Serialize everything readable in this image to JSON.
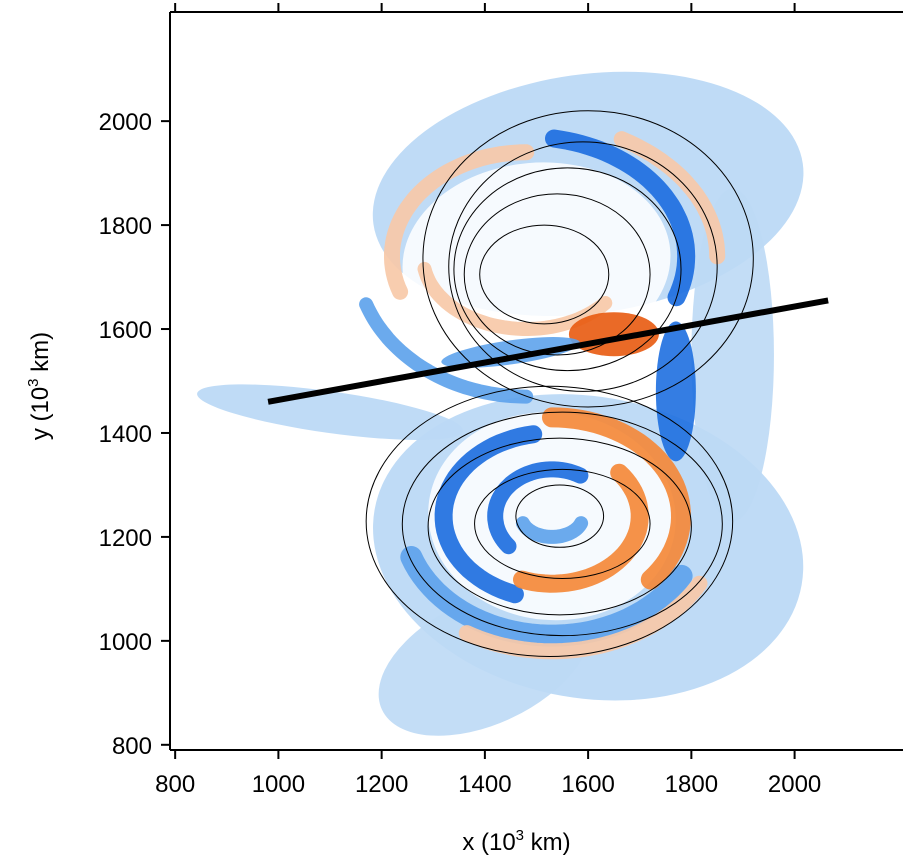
{
  "chart_data": {
    "type": "contour",
    "xlabel": "x (10",
    "xlabel_sup": "3",
    "xlabel_tail": " km)",
    "ylabel": "y (10",
    "ylabel_sup": "3",
    "ylabel_tail": " km)",
    "xlim": [
      790,
      2210
    ],
    "ylim": [
      790,
      2210
    ],
    "xticks": [
      800,
      1000,
      1200,
      1400,
      1600,
      1800,
      2000
    ],
    "yticks": [
      800,
      1000,
      1200,
      1400,
      1600,
      1800,
      2000
    ],
    "grid": false,
    "colors": {
      "positive_light": "#f7c9a8",
      "positive_mid": "#f4893a",
      "positive_strong": "#e85a10",
      "negative_light": "#bcd9f5",
      "negative_mid": "#5ea3ec",
      "negative_strong": "#1e6fe0",
      "contour_line": "#000000",
      "section_line": "#000000"
    },
    "section_line": {
      "x": [
        980,
        2065
      ],
      "y": [
        1460,
        1655
      ]
    },
    "contours_upper_vortex": {
      "center": [
        1450,
        1730
      ],
      "rings": [
        {
          "x_range": [
            1280,
            1920
          ],
          "y_range": [
            1450,
            2020
          ]
        },
        {
          "x_range": [
            1330,
            1850
          ],
          "y_range": [
            1480,
            1960
          ]
        },
        {
          "x_range": [
            1340,
            1780
          ],
          "y_range": [
            1520,
            1910
          ]
        },
        {
          "x_range": [
            1360,
            1720
          ],
          "y_range": [
            1550,
            1860
          ]
        },
        {
          "x_range": [
            1390,
            1640
          ],
          "y_range": [
            1610,
            1800
          ]
        }
      ]
    },
    "contours_lower_vortex": {
      "center": [
        1530,
        1240
      ],
      "rings": [
        {
          "x_range": [
            1170,
            1880
          ],
          "y_range": [
            970,
            1490
          ]
        },
        {
          "x_range": [
            1240,
            1860
          ],
          "y_range": [
            1010,
            1440
          ]
        },
        {
          "x_range": [
            1290,
            1800
          ],
          "y_range": [
            1050,
            1390
          ]
        },
        {
          "x_range": [
            1380,
            1720
          ],
          "y_range": [
            1120,
            1330
          ]
        },
        {
          "x_range": [
            1460,
            1630
          ],
          "y_range": [
            1180,
            1300
          ]
        }
      ]
    }
  }
}
